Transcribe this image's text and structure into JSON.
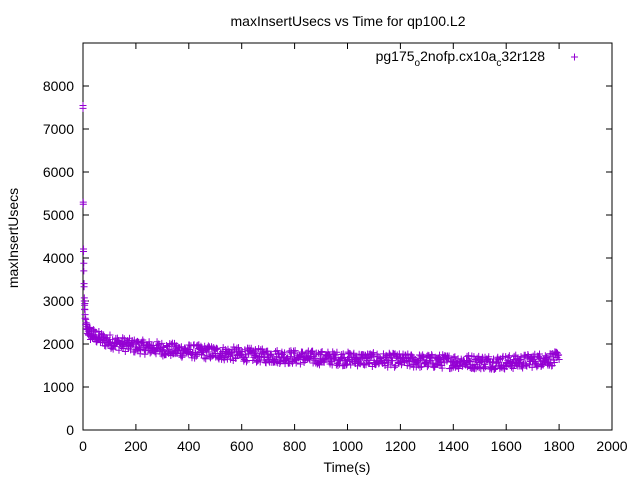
{
  "chart_data": {
    "type": "scatter",
    "title": "maxInsertUsecs vs Time for qp100.L2",
    "xlabel": "Time(s)",
    "ylabel": "maxInsertUsecs",
    "xlim": [
      0,
      2000
    ],
    "ylim": [
      0,
      9000
    ],
    "xticks": [
      0,
      200,
      400,
      600,
      800,
      1000,
      1200,
      1400,
      1600,
      1800,
      2000
    ],
    "yticks": [
      0,
      1000,
      2000,
      3000,
      4000,
      5000,
      6000,
      7000,
      8000
    ],
    "grid": false,
    "legend_position": "top-right",
    "marker": "plus",
    "series": [
      {
        "name_parts": [
          "pg175",
          "o",
          "2nofp.cx10a",
          "c",
          "32r128"
        ],
        "color": "#9400d3",
        "points": [
          [
            0,
            7480
          ],
          [
            1,
            5300
          ],
          [
            2,
            4150
          ],
          [
            3,
            3700
          ],
          [
            4,
            3330
          ],
          [
            5,
            3000
          ],
          [
            6,
            2900
          ],
          [
            7,
            2800
          ],
          [
            8,
            2600
          ],
          [
            10,
            2450
          ],
          [
            12,
            2400
          ],
          [
            15,
            2350
          ],
          [
            20,
            2300
          ],
          [
            25,
            2250
          ],
          [
            30,
            2200
          ],
          [
            40,
            2180
          ],
          [
            50,
            2150
          ],
          [
            60,
            2120
          ],
          [
            80,
            2080
          ],
          [
            100,
            2050
          ],
          [
            120,
            2020
          ],
          [
            150,
            1980
          ],
          [
            180,
            1950
          ],
          [
            200,
            1930
          ],
          [
            250,
            1900
          ],
          [
            300,
            1870
          ],
          [
            350,
            1840
          ],
          [
            400,
            1820
          ],
          [
            450,
            1800
          ],
          [
            500,
            1780
          ],
          [
            550,
            1760
          ],
          [
            600,
            1740
          ],
          [
            650,
            1720
          ],
          [
            700,
            1700
          ],
          [
            750,
            1690
          ],
          [
            800,
            1680
          ],
          [
            850,
            1670
          ],
          [
            900,
            1660
          ],
          [
            950,
            1650
          ],
          [
            1000,
            1640
          ],
          [
            1050,
            1630
          ],
          [
            1100,
            1620
          ],
          [
            1150,
            1610
          ],
          [
            1200,
            1600
          ],
          [
            1250,
            1590
          ],
          [
            1300,
            1585
          ],
          [
            1350,
            1580
          ],
          [
            1400,
            1575
          ],
          [
            1450,
            1570
          ],
          [
            1500,
            1565
          ],
          [
            1550,
            1560
          ],
          [
            1600,
            1560
          ],
          [
            1650,
            1570
          ],
          [
            1700,
            1600
          ],
          [
            1750,
            1630
          ],
          [
            1800,
            1640
          ]
        ],
        "spread_upper": 180,
        "spread_lower": 150
      }
    ]
  }
}
